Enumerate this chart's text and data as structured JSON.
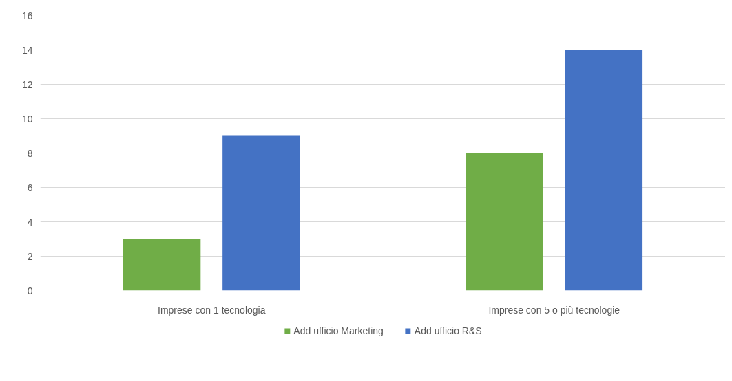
{
  "chart_data": {
    "type": "bar",
    "categories": [
      "Imprese con 1 tecnologia",
      "Imprese con 5 o più tecnologie"
    ],
    "series": [
      {
        "name": "Add ufficio Marketing",
        "color": "#70ad47",
        "values": [
          3,
          8
        ]
      },
      {
        "name": "Add ufficio R&S",
        "color": "#4472c4",
        "values": [
          9,
          14
        ]
      }
    ],
    "ylim": [
      0,
      16
    ],
    "yticks": [
      0,
      2,
      4,
      6,
      8,
      10,
      12,
      14,
      16
    ],
    "grid": "y",
    "legend": "bottom"
  }
}
